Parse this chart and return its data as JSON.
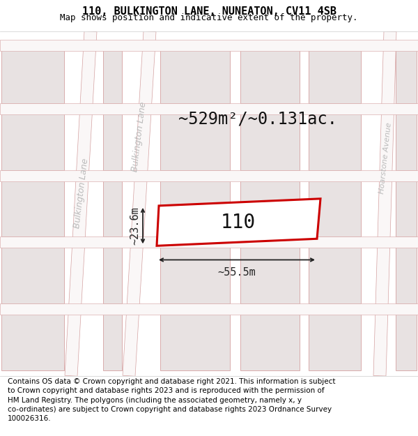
{
  "title": "110, BULKINGTON LANE, NUNEATON, CV11 4SB",
  "subtitle": "Map shows position and indicative extent of the property.",
  "footer": "Contains OS data © Crown copyright and database right 2021. This information is subject\nto Crown copyright and database rights 2023 and is reproduced with the permission of\nHM Land Registry. The polygons (including the associated geometry, namely x, y\nco-ordinates) are subject to Crown copyright and database rights 2023 Ordnance Survey\n100026316.",
  "bg_color": "#f2eded",
  "block_color": "#e8e2e2",
  "block_edge": "#d4a0a0",
  "road_color": "#faf7f7",
  "road_edge": "#d4a0a0",
  "highlight_color": "#cc0000",
  "highlight_fill": "#ffffff",
  "dim_color": "#222222",
  "area_text": "~529m²/~0.131ac.",
  "label_110": "110",
  "dim_width": "~55.5m",
  "dim_height": "~23.6m",
  "title_fontsize": 11,
  "subtitle_fontsize": 9,
  "footer_fontsize": 7.5,
  "area_fontsize": 17,
  "label_fontsize": 20,
  "dim_fontsize": 11,
  "road_label_fontsize": 9
}
